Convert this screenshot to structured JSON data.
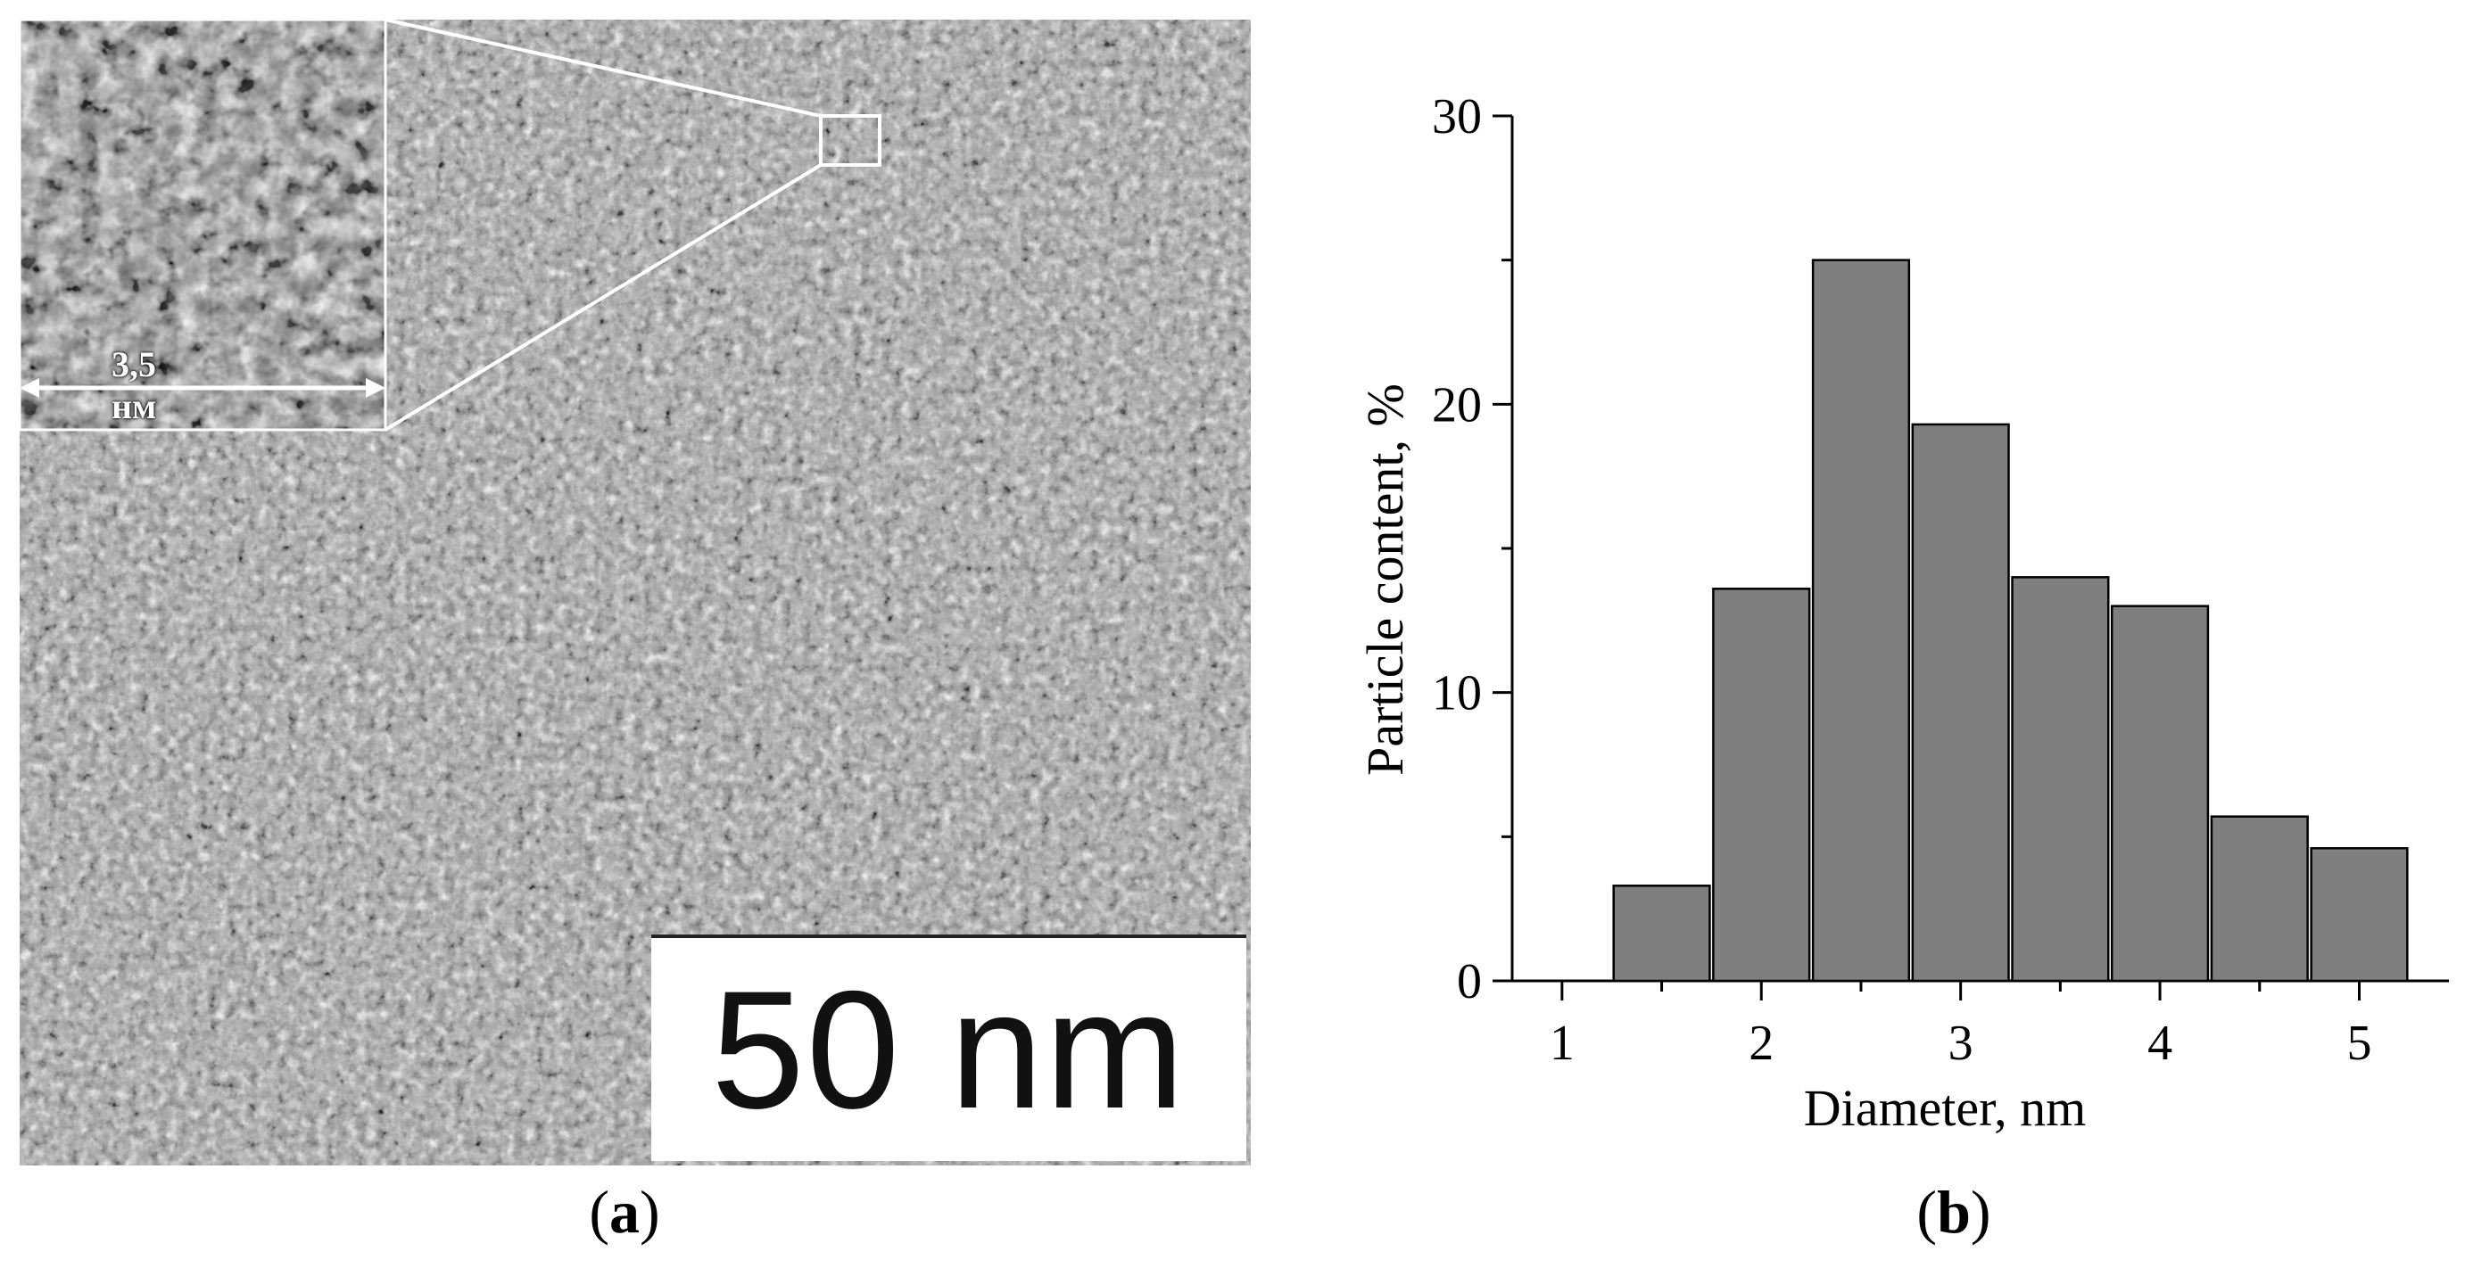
{
  "panels": {
    "a": {
      "label": "a",
      "scale_bar": "50 nm",
      "inset_scale": "3,5 нм"
    },
    "b": {
      "label": "b"
    }
  },
  "chart_data": {
    "type": "bar",
    "categories": [
      "1.5",
      "2",
      "2.5",
      "3",
      "3.5",
      "4",
      "4.5",
      "5"
    ],
    "bin_centers": [
      1.5,
      2.0,
      2.5,
      3.0,
      3.5,
      4.0,
      4.5,
      5.0
    ],
    "bin_width": 0.5,
    "values": [
      3.3,
      13.6,
      25.0,
      19.3,
      14.0,
      13.0,
      5.7,
      4.6
    ],
    "xlabel": "Diameter, nm",
    "ylabel": "Particle content, %",
    "xlim": [
      0.75,
      5.45
    ],
    "ylim": [
      0,
      30
    ],
    "xticks": [
      1,
      2,
      3,
      4,
      5
    ],
    "yticks": [
      0,
      10,
      20,
      30
    ],
    "grid": false,
    "bar_color": "#7f7f7f",
    "bar_edge_color": "#000000"
  }
}
